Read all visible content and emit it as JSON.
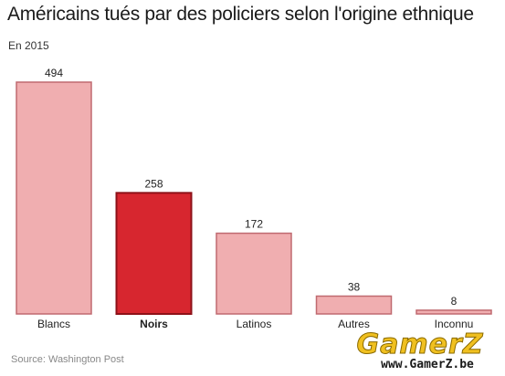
{
  "title": "Américains tués par des policiers selon l'origine ethnique",
  "subtitle": "En 2015",
  "source": "Source: Washington Post",
  "chart_data": {
    "type": "bar",
    "categories": [
      "Blancs",
      "Noirs",
      "Latinos",
      "Autres",
      "Inconnu"
    ],
    "values": [
      494,
      258,
      172,
      38,
      8
    ],
    "highlight_category": "Noirs",
    "colors": {
      "bar_fill": "#f0aeb0",
      "bar_stroke": "#c06a70",
      "highlight_fill": "#d7262f",
      "highlight_stroke": "#8e1118"
    },
    "ylim": [
      0,
      494
    ],
    "grid": false,
    "show_value_labels": true
  },
  "watermark": {
    "logo_text": "GamerZ",
    "url": "www.GamerZ.be"
  }
}
